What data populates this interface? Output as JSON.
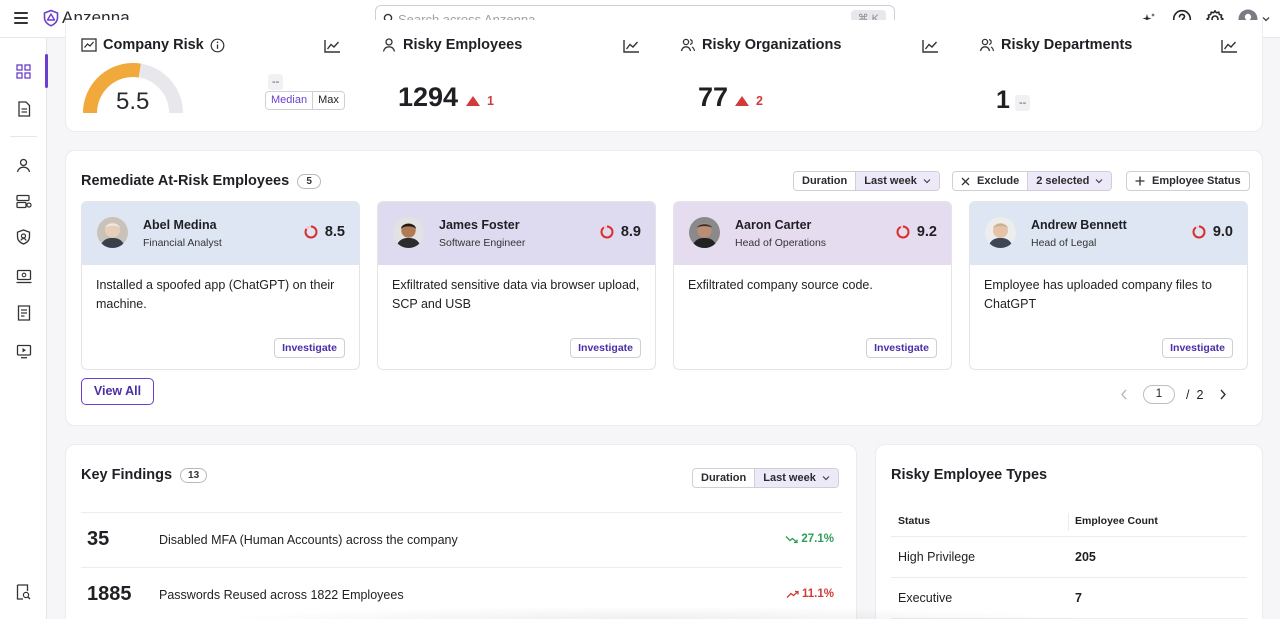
{
  "app": {
    "name": "Anzenna"
  },
  "search": {
    "placeholder": "Search across Anzenna",
    "shortcut": "⌘ K"
  },
  "topbar": {
    "icons": [
      "sparkle-icon",
      "help-icon",
      "gear-icon",
      "user-avatar-icon",
      "chevron-down-icon"
    ]
  },
  "sidebar": {
    "items": [
      {
        "icon": "dashboard-grid-icon",
        "active": true
      },
      {
        "icon": "document-icon"
      },
      {
        "icon": "person-icon"
      },
      {
        "icon": "organizations-icon"
      },
      {
        "icon": "shield-icon"
      },
      {
        "icon": "device-icon"
      },
      {
        "icon": "report-list-icon"
      },
      {
        "icon": "monitor-icon"
      },
      {
        "icon": "audit-search-icon"
      }
    ]
  },
  "metrics": {
    "company_risk": {
      "title": "Company Risk",
      "value": "5.5",
      "gauge_fraction": 0.55,
      "prev": "--",
      "toggle": [
        "Median",
        "Max"
      ]
    },
    "risky_employees": {
      "title": "Risky Employees",
      "value": "1294",
      "delta": "1"
    },
    "risky_organizations": {
      "title": "Risky Organizations",
      "value": "77",
      "delta": "2"
    },
    "risky_departments": {
      "title": "Risky Departments",
      "value": "1",
      "delta": "--"
    }
  },
  "remediate": {
    "title": "Remediate At-Risk Employees",
    "count": "5",
    "duration_label": "Duration",
    "duration_value": "Last week",
    "exclude_label": "Exclude",
    "exclude_value": "2 selected",
    "status_button": "Employee Status",
    "investigate_label": "Investigate",
    "view_all": "View All",
    "page": "1",
    "page_sep": "/",
    "total_pages": "2",
    "employees": [
      {
        "name": "Abel Medina",
        "role": "Financial Analyst",
        "score": "8.5",
        "desc": "Installed a spoofed app (ChatGPT) on their machine.",
        "head_color": "#dde6f2"
      },
      {
        "name": "James Foster",
        "role": "Software Engineer",
        "score": "8.9",
        "desc": "Exfiltrated sensitive data via browser upload, SCP and USB",
        "head_color": "#dedbf0"
      },
      {
        "name": "Aaron Carter",
        "role": "Head of Operations",
        "score": "9.2",
        "desc": "Exfiltrated company source code.",
        "head_color": "#e6dcf0"
      },
      {
        "name": "Andrew Bennett",
        "role": "Head of Legal",
        "score": "9.0",
        "desc": "Employee has uploaded company files to ChatGPT",
        "head_color": "#dde6f2"
      }
    ]
  },
  "findings": {
    "title": "Key Findings",
    "count": "13",
    "duration_label": "Duration",
    "duration_value": "Last week",
    "rows": [
      {
        "num": "35",
        "text": "Disabled MFA (Human Accounts) across the company",
        "trend": "27.1%",
        "direction": "down",
        "color": "#2f9e57"
      },
      {
        "num": "1885",
        "text": "Passwords Reused across 1822 Employees",
        "trend": "11.1%",
        "direction": "up",
        "color": "#d23b3b"
      }
    ]
  },
  "types": {
    "title": "Risky Employee Types",
    "columns": [
      "Status",
      "Employee Count"
    ],
    "rows": [
      {
        "status": "High Privilege",
        "count": "205"
      },
      {
        "status": "Executive",
        "count": "7"
      }
    ]
  }
}
